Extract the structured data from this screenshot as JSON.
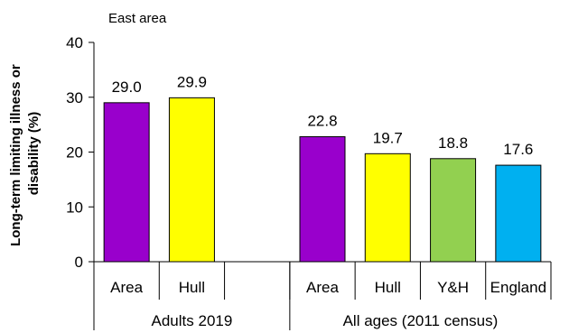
{
  "chart_data": {
    "type": "bar",
    "subtitle": "East area",
    "ylabel_line1": "Long-term limiting illness or",
    "ylabel_line2": "disability (%)",
    "ylim": [
      0,
      40
    ],
    "yticks": [
      "0",
      "10",
      "20",
      "30",
      "40"
    ],
    "grid": false,
    "legend": "none",
    "groups": [
      {
        "label": "Adults 2019"
      },
      {
        "label": "All ages (2011 census)"
      }
    ],
    "bars": [
      {
        "category": "Area",
        "group": 0,
        "value": 29.0,
        "label": "29.0",
        "color": "#9900cc"
      },
      {
        "category": "Hull",
        "group": 0,
        "value": 29.9,
        "label": "29.9",
        "color": "#ffff00"
      },
      {
        "category": "",
        "group": 0,
        "value": null,
        "label": "",
        "color": ""
      },
      {
        "category": "Area",
        "group": 1,
        "value": 22.8,
        "label": "22.8",
        "color": "#9900cc"
      },
      {
        "category": "Hull",
        "group": 1,
        "value": 19.7,
        "label": "19.7",
        "color": "#ffff00"
      },
      {
        "category": "Y&H",
        "group": 1,
        "value": 18.8,
        "label": "18.8",
        "color": "#92d050"
      },
      {
        "category": "England",
        "group": 1,
        "value": 17.6,
        "label": "17.6",
        "color": "#00b0f0"
      }
    ]
  }
}
